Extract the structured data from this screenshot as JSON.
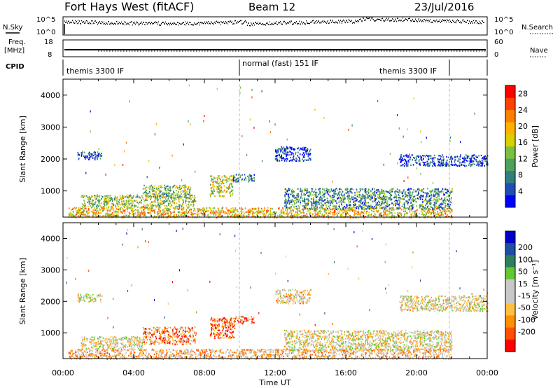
{
  "header": {
    "station": "Fort Hays West (fitACF)",
    "beam": "Beam 12",
    "date": "23/Jul/2016"
  },
  "top_panels": {
    "nsky_label": "N.Sky",
    "nsky_ticks": [
      "10^5",
      "10^0"
    ],
    "nsearch_label": "N.Search",
    "nsearch_ticks": [
      "10^5",
      "10^0"
    ],
    "freq_label": "Freq.",
    "freq_unit": "[MHz]",
    "freq_ticks": [
      "18",
      "8"
    ],
    "nave_label": "Nave",
    "nave_ticks": [
      "60",
      "0"
    ],
    "cpid_label": "CPID",
    "cpid_segments": [
      {
        "label": "themis 3300 IF",
        "start_h": 0,
        "end_h": 10
      },
      {
        "label": "normal (fast) 151 IF",
        "start_h": 10,
        "end_h": 22
      },
      {
        "label": "themis 3300 IF",
        "start_h": 18.2,
        "end_h": 22
      }
    ]
  },
  "colors": {
    "power": [
      "#0000ff",
      "#1f4fb5",
      "#2f7f7f",
      "#4ea15a",
      "#7ac043",
      "#d8d000",
      "#ffb000",
      "#ff7f00",
      "#ff4000",
      "#ff0000"
    ],
    "velocity": [
      "#ff0000",
      "#ff5000",
      "#ff9000",
      "#ffc040",
      "#c8c8c8",
      "#c8c8c8",
      "#64c832",
      "#2f7f5f",
      "#1f4fa0",
      "#0000c8"
    ]
  },
  "chart_data": [
    {
      "type": "heatmap",
      "panel": "power",
      "ylabel": "Slant Range [km]",
      "xlabel": "Time UT",
      "x_ticks": [
        "00:00",
        "04:00",
        "08:00",
        "12:00",
        "16:00",
        "20:00",
        "00:00"
      ],
      "xlim_hours": [
        0,
        24
      ],
      "ylim_km": [
        180,
        4500
      ],
      "y_ticks": [
        1000,
        2000,
        3000,
        4000
      ],
      "colorbar_label": "Power [dB]",
      "colorbar_ticks": [
        4,
        8,
        12,
        16,
        20,
        24,
        28
      ],
      "colorbar_range": [
        0,
        30
      ],
      "regions": [
        {
          "t": [
            0.3,
            22
          ],
          "r": [
            180,
            500
          ],
          "level": 0.62
        },
        {
          "t": [
            1.0,
            7.5
          ],
          "r": [
            500,
            900
          ],
          "level": 0.45
        },
        {
          "t": [
            4.5,
            7.2
          ],
          "r": [
            800,
            1200
          ],
          "level": 0.4
        },
        {
          "t": [
            8.3,
            9.6
          ],
          "r": [
            850,
            1500
          ],
          "level": 0.55
        },
        {
          "t": [
            9.6,
            10.8
          ],
          "r": [
            1300,
            1550
          ],
          "level": 0.25
        },
        {
          "t": [
            12.5,
            22
          ],
          "r": [
            450,
            1100
          ],
          "level": 0.3
        },
        {
          "t": [
            0.8,
            2.2
          ],
          "r": [
            2000,
            2250
          ],
          "level": 0.15
        },
        {
          "t": [
            19.0,
            24
          ],
          "r": [
            1800,
            2150
          ],
          "level": 0.12
        },
        {
          "t": [
            12.0,
            14.0
          ],
          "r": [
            1950,
            2400
          ],
          "level": 0.1
        }
      ]
    },
    {
      "type": "heatmap",
      "panel": "velocity",
      "ylabel": "Slant Range [km]",
      "xlabel": "Time UT",
      "x_ticks": [
        "00:00",
        "04:00",
        "08:00",
        "12:00",
        "16:00",
        "20:00",
        "00:00"
      ],
      "xlim_hours": [
        0,
        24
      ],
      "ylim_km": [
        180,
        4500
      ],
      "y_ticks": [
        1000,
        2000,
        3000,
        4000
      ],
      "colorbar_label": "Velocity [m s⁻¹]",
      "colorbar_ticks": [
        "200",
        "100",
        "50",
        "15",
        "-15",
        "-50",
        "-100",
        "-200"
      ],
      "regions": [
        {
          "t": [
            0.3,
            22
          ],
          "r": [
            180,
            500
          ],
          "level": 0.35
        },
        {
          "t": [
            1.0,
            4.5
          ],
          "r": [
            500,
            900
          ],
          "level": 0.45
        },
        {
          "t": [
            4.5,
            7.5
          ],
          "r": [
            650,
            1200
          ],
          "level": 0.25
        },
        {
          "t": [
            8.3,
            9.7
          ],
          "r": [
            850,
            1500
          ],
          "level": 0.15
        },
        {
          "t": [
            9.7,
            10.8
          ],
          "r": [
            1300,
            1550
          ],
          "level": 0.2
        },
        {
          "t": [
            12.5,
            22
          ],
          "r": [
            450,
            1100
          ],
          "level": 0.45
        },
        {
          "t": [
            0.8,
            2.2
          ],
          "r": [
            2000,
            2250
          ],
          "level": 0.45
        },
        {
          "t": [
            19.0,
            24
          ],
          "r": [
            1700,
            2200
          ],
          "level": 0.45
        },
        {
          "t": [
            12.0,
            14.0
          ],
          "r": [
            1950,
            2400
          ],
          "level": 0.4
        }
      ]
    }
  ]
}
